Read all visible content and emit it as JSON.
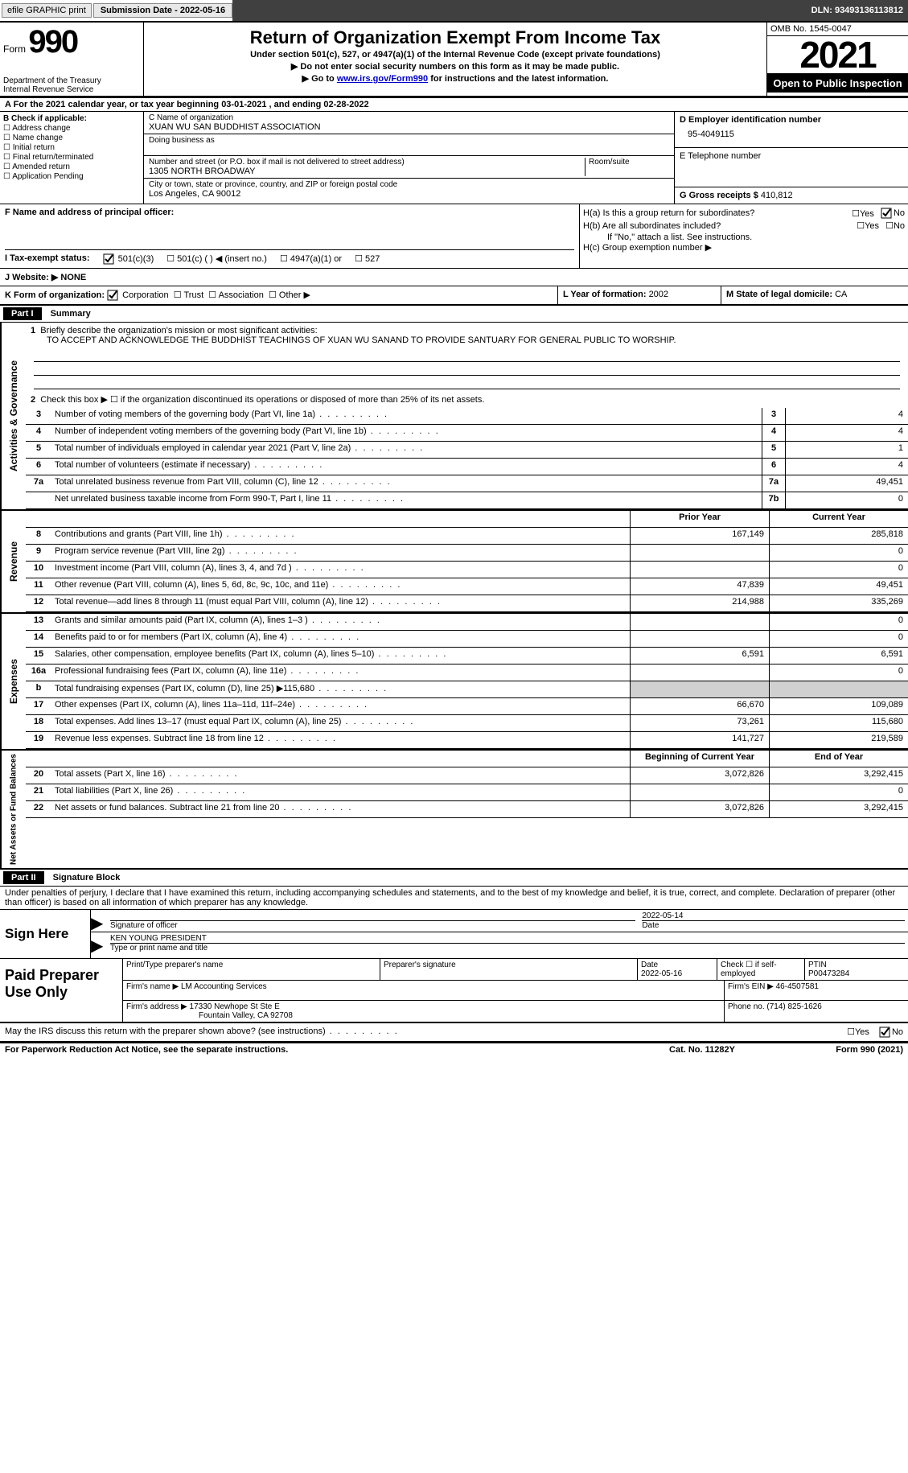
{
  "top_bar": {
    "efile_label": "efile GRAPHIC print",
    "submission_label": "Submission Date - 2022-05-16",
    "dln_label": "DLN: 93493136113812"
  },
  "header": {
    "form_label": "Form",
    "form_number": "990",
    "dept": "Department of the Treasury",
    "irs": "Internal Revenue Service",
    "title": "Return of Organization Exempt From Income Tax",
    "subtitle1": "Under section 501(c), 527, or 4947(a)(1) of the Internal Revenue Code (except private foundations)",
    "subtitle2": "▶ Do not enter social security numbers on this form as it may be made public.",
    "subtitle3_pre": "▶ Go to ",
    "subtitle3_link": "www.irs.gov/Form990",
    "subtitle3_post": " for instructions and the latest information.",
    "omb": "OMB No. 1545-0047",
    "year": "2021",
    "open": "Open to Public Inspection"
  },
  "row_a": "A For the 2021 calendar year, or tax year beginning 03-01-2021    , and ending 02-28-2022",
  "col_b": {
    "label": "B Check if applicable:",
    "opts": [
      "☐ Address change",
      "☐ Name change",
      "☐ Initial return",
      "☐ Final return/terminated",
      "☐ Amended return",
      "☐ Application Pending"
    ]
  },
  "col_c": {
    "name_label": "C Name of organization",
    "name": "XUAN WU SAN BUDDHIST ASSOCIATION",
    "dba_label": "Doing business as",
    "dba": "",
    "street_label": "Number and street (or P.O. box if mail is not delivered to street address)",
    "street": "1305 NORTH BROADWAY",
    "room_label": "Room/suite",
    "city_label": "City or town, state or province, country, and ZIP or foreign postal code",
    "city": "Los Angeles, CA  90012"
  },
  "col_d": {
    "ein_label": "D Employer identification number",
    "ein": "95-4049115",
    "phone_label": "E Telephone number",
    "phone": "",
    "gross_label": "G Gross receipts $ ",
    "gross": "410,812"
  },
  "row_f": "F  Name and address of principal officer:",
  "row_h": {
    "ha": "H(a)  Is this a group return for subordinates?",
    "hb": "H(b)  Are all subordinates included?",
    "hb_note": "If \"No,\" attach a list. See instructions.",
    "hc": "H(c)  Group exemption number ▶",
    "yes": "Yes",
    "no": "No"
  },
  "row_i": {
    "label": "I    Tax-exempt status:",
    "opt1": "501(c)(3)",
    "opt2": "501(c) (  ) ◀ (insert no.)",
    "opt3": "4947(a)(1) or",
    "opt4": "527"
  },
  "row_j": "J   Website: ▶   NONE",
  "row_k": {
    "k_label": "K Form of organization:",
    "corp": "Corporation",
    "trust": "Trust",
    "assoc": "Association",
    "other": "Other ▶",
    "l_label": "L Year of formation: ",
    "l_val": "2002",
    "m_label": "M State of legal domicile: ",
    "m_val": "CA"
  },
  "part1": {
    "header": "Part I",
    "title": "Summary",
    "line1_label": "Briefly describe the organization's mission or most significant activities:",
    "mission": "TO ACCEPT AND ACKNOWLEDGE THE BUDDHIST TEACHINGS OF XUAN WU SANAND TO PROVIDE SANTUARY FOR GENERAL PUBLIC TO WORSHIP.",
    "line2": "Check this box ▶ ☐  if the organization discontinued its operations or disposed of more than 25% of its net assets.",
    "activities": {
      "label": "Activities & Governance",
      "rows": [
        {
          "num": "3",
          "desc": "Number of voting members of the governing body (Part VI, line 1a)",
          "box": "3",
          "val": "4"
        },
        {
          "num": "4",
          "desc": "Number of independent voting members of the governing body (Part VI, line 1b)",
          "box": "4",
          "val": "4"
        },
        {
          "num": "5",
          "desc": "Total number of individuals employed in calendar year 2021 (Part V, line 2a)",
          "box": "5",
          "val": "1"
        },
        {
          "num": "6",
          "desc": "Total number of volunteers (estimate if necessary)",
          "box": "6",
          "val": "4"
        },
        {
          "num": "7a",
          "desc": "Total unrelated business revenue from Part VIII, column (C), line 12",
          "box": "7a",
          "val": "49,451"
        },
        {
          "num": "",
          "desc": "Net unrelated business taxable income from Form 990-T, Part I, line 11",
          "box": "7b",
          "val": "0"
        }
      ]
    },
    "revenue": {
      "label": "Revenue",
      "prior_header": "Prior Year",
      "current_header": "Current Year",
      "rows": [
        {
          "num": "8",
          "desc": "Contributions and grants (Part VIII, line 1h)",
          "prior": "167,149",
          "curr": "285,818"
        },
        {
          "num": "9",
          "desc": "Program service revenue (Part VIII, line 2g)",
          "prior": "",
          "curr": "0"
        },
        {
          "num": "10",
          "desc": "Investment income (Part VIII, column (A), lines 3, 4, and 7d )",
          "prior": "",
          "curr": "0"
        },
        {
          "num": "11",
          "desc": "Other revenue (Part VIII, column (A), lines 5, 6d, 8c, 9c, 10c, and 11e)",
          "prior": "47,839",
          "curr": "49,451"
        },
        {
          "num": "12",
          "desc": "Total revenue—add lines 8 through 11 (must equal Part VIII, column (A), line 12)",
          "prior": "214,988",
          "curr": "335,269"
        }
      ]
    },
    "expenses": {
      "label": "Expenses",
      "rows": [
        {
          "num": "13",
          "desc": "Grants and similar amounts paid (Part IX, column (A), lines 1–3 )",
          "prior": "",
          "curr": "0"
        },
        {
          "num": "14",
          "desc": "Benefits paid to or for members (Part IX, column (A), line 4)",
          "prior": "",
          "curr": "0"
        },
        {
          "num": "15",
          "desc": "Salaries, other compensation, employee benefits (Part IX, column (A), lines 5–10)",
          "prior": "6,591",
          "curr": "6,591"
        },
        {
          "num": "16a",
          "desc": "Professional fundraising fees (Part IX, column (A), line 11e)",
          "prior": "",
          "curr": "0"
        },
        {
          "num": "b",
          "desc": "Total fundraising expenses (Part IX, column (D), line 25) ▶115,680",
          "prior": "SHADE",
          "curr": "SHADE"
        },
        {
          "num": "17",
          "desc": "Other expenses (Part IX, column (A), lines 11a–11d, 11f–24e)",
          "prior": "66,670",
          "curr": "109,089"
        },
        {
          "num": "18",
          "desc": "Total expenses. Add lines 13–17 (must equal Part IX, column (A), line 25)",
          "prior": "73,261",
          "curr": "115,680"
        },
        {
          "num": "19",
          "desc": "Revenue less expenses. Subtract line 18 from line 12",
          "prior": "141,727",
          "curr": "219,589"
        }
      ]
    },
    "netassets": {
      "label": "Net Assets or Fund Balances",
      "begin_header": "Beginning of Current Year",
      "end_header": "End of Year",
      "rows": [
        {
          "num": "20",
          "desc": "Total assets (Part X, line 16)",
          "prior": "3,072,826",
          "curr": "3,292,415"
        },
        {
          "num": "21",
          "desc": "Total liabilities (Part X, line 26)",
          "prior": "",
          "curr": "0"
        },
        {
          "num": "22",
          "desc": "Net assets or fund balances. Subtract line 21 from line 20",
          "prior": "3,072,826",
          "curr": "3,292,415"
        }
      ]
    }
  },
  "part2": {
    "header": "Part II",
    "title": "Signature Block",
    "declaration": "Under penalties of perjury, I declare that I have examined this return, including accompanying schedules and statements, and to the best of my knowledge and belief, it is true, correct, and complete. Declaration of preparer (other than officer) is based on all information of which preparer has any knowledge.",
    "sign_here": "Sign Here",
    "sig_officer": "Signature of officer",
    "sig_date_label": "Date",
    "sig_date": "2022-05-14",
    "printed": "KEN YOUNG  PRESIDENT",
    "printed_label": "Type or print name and title",
    "paid_label": "Paid Preparer Use Only",
    "prep_name_label": "Print/Type preparer's name",
    "prep_sig_label": "Preparer's signature",
    "prep_date_label": "Date",
    "prep_date": "2022-05-16",
    "prep_check_label": "Check ☐ if self-employed",
    "ptin_label": "PTIN",
    "ptin": "P00473284",
    "firm_name_label": "Firm's name     ▶ ",
    "firm_name": "LM Accounting Services",
    "firm_ein_label": "Firm's EIN ▶ ",
    "firm_ein": "46-4507581",
    "firm_addr_label": "Firm's address ▶ ",
    "firm_addr1": "17330 Newhope St Ste E",
    "firm_addr2": "Fountain Valley, CA  92708",
    "phone_label": "Phone no. ",
    "phone": "(714) 825-1626"
  },
  "footer": {
    "discuss": "May the IRS discuss this return with the preparer shown above? (see instructions)",
    "yes": "Yes",
    "no": "No",
    "paperwork": "For Paperwork Reduction Act Notice, see the separate instructions.",
    "cat": "Cat. No. 11282Y",
    "form": "Form 990 (2021)"
  }
}
